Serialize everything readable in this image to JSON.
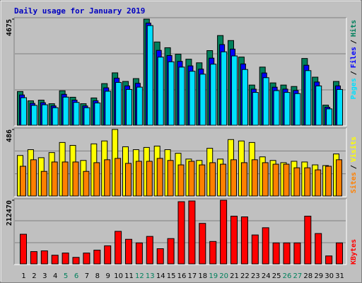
{
  "chart_data": [
    {
      "type": "bar",
      "title": "Daily usage for January 2019",
      "ylim": [
        0,
        4675
      ],
      "yticks": [
        4675
      ],
      "legend_separator": "/",
      "series": [
        {
          "name": "Hits",
          "color": "#00805c",
          "values": [
            1507,
            1099,
            1130,
            973,
            1539,
            1256,
            973,
            1225,
            1853,
            2324,
            1947,
            2072,
            4675,
            3674,
            3423,
            3140,
            2920,
            2763,
            3297,
            3956,
            3737,
            3014,
            1790,
            2575,
            1884,
            1790,
            1727,
            2952,
            2135,
            911,
            1947
          ]
        },
        {
          "name": "Files",
          "color": "#0000ff",
          "values": [
            1356,
            989,
            1017,
            876,
            1385,
            1130,
            876,
            1103,
            1668,
            2092,
            1752,
            1865,
            4500,
            3307,
            3081,
            2826,
            2628,
            2487,
            2967,
            3560,
            3363,
            2713,
            1611,
            2318,
            1696,
            1611,
            1554,
            2657,
            1922,
            820,
            1752
          ]
        },
        {
          "name": "Pages",
          "color": "#00e0ff",
          "values": [
            1236,
            901,
            927,
            798,
            1262,
            1030,
            798,
            1005,
            1519,
            1906,
            1597,
            1699,
            4393,
            3013,
            2807,
            2575,
            2394,
            2266,
            2704,
            3244,
            3064,
            2471,
            1468,
            2112,
            1545,
            1468,
            1416,
            2421,
            1751,
            747,
            1597
          ]
        }
      ]
    },
    {
      "type": "bar",
      "ylim": [
        0,
        486
      ],
      "yticks": [
        486
      ],
      "legend_separator": "/",
      "series": [
        {
          "name": "Visits",
          "color": "#ffff00",
          "values": [
            298,
            340,
            282,
            319,
            392,
            371,
            262,
            382,
            403,
            486,
            361,
            340,
            356,
            366,
            340,
            314,
            272,
            262,
            350,
            272,
            413,
            403,
            392,
            288,
            262,
            246,
            256,
            251,
            230,
            225,
            309
          ]
        },
        {
          "name": "Sites",
          "color": "#ff8000",
          "values": [
            220,
            267,
            183,
            251,
            251,
            251,
            183,
            246,
            267,
            277,
            241,
            256,
            256,
            277,
            262,
            230,
            256,
            230,
            246,
            235,
            267,
            246,
            267,
            246,
            235,
            235,
            209,
            209,
            194,
            220,
            267
          ]
        }
      ]
    },
    {
      "type": "bar",
      "ylim": [
        0,
        212470
      ],
      "yticks": [
        212470
      ],
      "categories": [
        "1",
        "2",
        "3",
        "4",
        "5",
        "6",
        "7",
        "8",
        "9",
        "10",
        "11",
        "12",
        "13",
        "14",
        "15",
        "16",
        "17",
        "18",
        "19",
        "20",
        "21",
        "22",
        "23",
        "24",
        "25",
        "26",
        "27",
        "28",
        "29",
        "30",
        "31"
      ],
      "category_colors": [
        "#000000",
        "#000000",
        "#000000",
        "#000000",
        "#00805c",
        "#00805c",
        "#000000",
        "#000000",
        "#000000",
        "#000000",
        "#000000",
        "#00805c",
        "#00805c",
        "#000000",
        "#000000",
        "#000000",
        "#000000",
        "#000000",
        "#00805c",
        "#00805c",
        "#000000",
        "#000000",
        "#000000",
        "#000000",
        "#000000",
        "#00805c",
        "#00805c",
        "#000000",
        "#000000",
        "#000000",
        "#000000"
      ],
      "series": [
        {
          "name": "KBytes",
          "color": "#ff0000",
          "values": [
            100254,
            42966,
            45353,
            31031,
            38192,
            23870,
            38192,
            47740,
            62062,
            109802,
            83545,
            71610,
            93093,
            52514,
            85932,
            207669,
            210083,
            136059,
            76384,
            212470,
            159929,
            157542,
            97867,
            121737,
            71610,
            71610,
            71610,
            159929,
            102641,
            28644,
            71610
          ]
        }
      ]
    }
  ]
}
